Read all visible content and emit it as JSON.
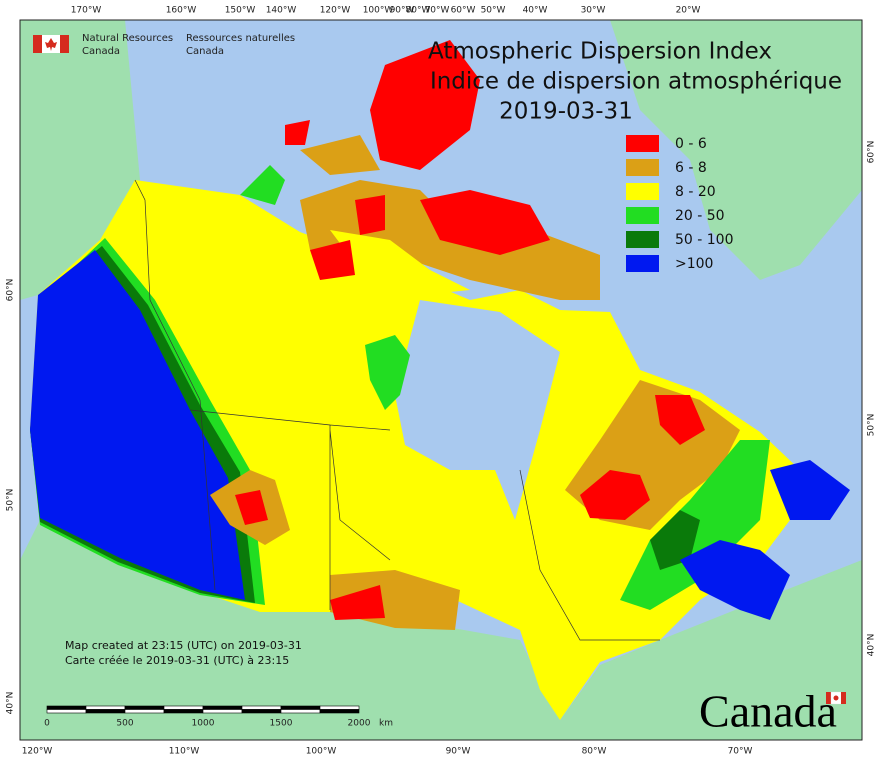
{
  "agency": {
    "english": [
      "Natural Resources",
      "Canada"
    ],
    "french": [
      "Ressources naturelles",
      "Canada"
    ]
  },
  "title": {
    "english": "Atmospheric Dispersion Index",
    "french": "Indice de dispersion atmosphérique",
    "date": "2019-03-31"
  },
  "legend": [
    {
      "label": "0 - 6",
      "color": "#ff0000"
    },
    {
      "label": "6 - 8",
      "color": "#dba016"
    },
    {
      "label": "8 - 20",
      "color": "#ffff00"
    },
    {
      "label": "20 - 50",
      "color": "#22dd22"
    },
    {
      "label": "50 - 100",
      "color": "#0a7a0a"
    },
    {
      "label": ">100",
      "color": "#0018f0"
    }
  ],
  "graticule": {
    "top": [
      "170°W",
      "160°W",
      "150°W",
      "140°W",
      "120°W",
      "100°W",
      "90°W",
      "80°W",
      "70°W",
      "60°W",
      "50°W",
      "40°W",
      "30°W",
      "20°W"
    ],
    "bottom": [
      "120°W",
      "110°W",
      "100°W",
      "90°W",
      "80°W",
      "70°W"
    ],
    "left": [
      "60°N",
      "50°N",
      "40°N"
    ],
    "right": [
      "60°N",
      "50°N",
      "40°N"
    ]
  },
  "notes": [
    "Map created at 23:15 (UTC) on 2019-03-31",
    "Carte créée le 2019-03-31 (UTC) à 23:15"
  ],
  "scale_bar": {
    "labels": [
      "0",
      "500",
      "1000",
      "1500",
      "2000"
    ],
    "unit": "km"
  },
  "wordmark": "Canada"
}
